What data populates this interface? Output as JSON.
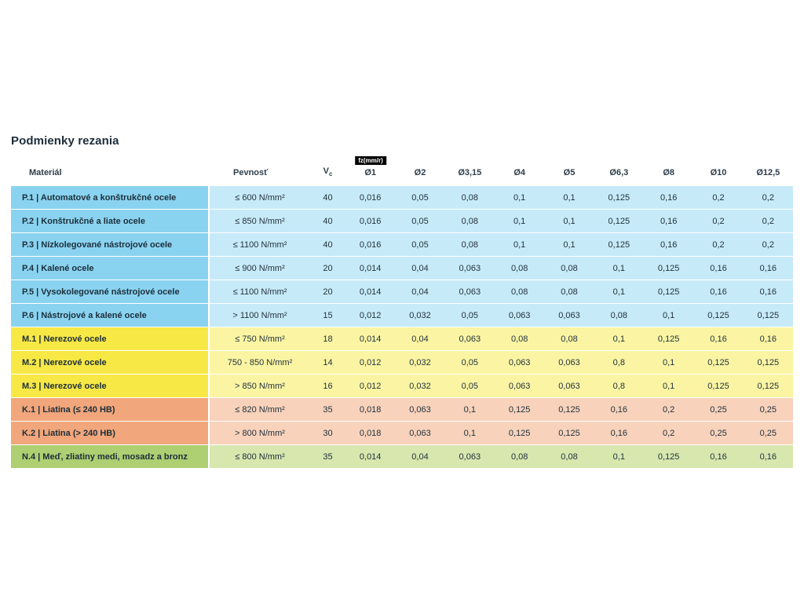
{
  "title": "Podmienky rezania",
  "table": {
    "header": {
      "material": "Materiál",
      "strength": "Pevnosť",
      "vc_main": "V",
      "vc_sub": "c",
      "fz_label": "fz(mm/r)",
      "diameters": [
        "Ø1",
        "Ø2",
        "Ø3,15",
        "Ø4",
        "Ø5",
        "Ø6,3",
        "Ø8",
        "Ø10",
        "Ø12,5"
      ]
    },
    "rows": [
      {
        "group": "P",
        "material": "P.1 | Automatové a konštrukčné ocele",
        "strength": "≤ 600 N/mm²",
        "vc": "40",
        "values": [
          "0,016",
          "0,05",
          "0,08",
          "0,1",
          "0,1",
          "0,125",
          "0,16",
          "0,2",
          "0,2"
        ]
      },
      {
        "group": "P",
        "material": "P.2 | Konštrukčné a liate ocele",
        "strength": "≤ 850 N/mm²",
        "vc": "40",
        "values": [
          "0,016",
          "0,05",
          "0,08",
          "0,1",
          "0,1",
          "0,125",
          "0,16",
          "0,2",
          "0,2"
        ]
      },
      {
        "group": "P",
        "material": "P.3 | Nízkolegované nástrojové ocele",
        "strength": "≤ 1100 N/mm²",
        "vc": "40",
        "values": [
          "0,016",
          "0,05",
          "0,08",
          "0,1",
          "0,1",
          "0,125",
          "0,16",
          "0,2",
          "0,2"
        ]
      },
      {
        "group": "P",
        "material": "P.4 | Kalené ocele",
        "strength": "≤ 900 N/mm²",
        "vc": "20",
        "values": [
          "0,014",
          "0,04",
          "0,063",
          "0,08",
          "0,08",
          "0,1",
          "0,125",
          "0,16",
          "0,16"
        ]
      },
      {
        "group": "P",
        "material": "P.5 | Vysokolegované nástrojové ocele",
        "strength": "≤ 1100 N/mm²",
        "vc": "20",
        "values": [
          "0,014",
          "0,04",
          "0,063",
          "0,08",
          "0,08",
          "0,1",
          "0,125",
          "0,16",
          "0,16"
        ]
      },
      {
        "group": "P",
        "material": "P.6 | Nástrojové a kalené ocele",
        "strength": "> 1100 N/mm²",
        "vc": "15",
        "values": [
          "0,012",
          "0,032",
          "0,05",
          "0,063",
          "0,063",
          "0,08",
          "0,1",
          "0,125",
          "0,125"
        ]
      },
      {
        "group": "M",
        "material": "M.1 | Nerezové ocele",
        "strength": "≤ 750 N/mm²",
        "vc": "18",
        "values": [
          "0,014",
          "0,04",
          "0,063",
          "0,08",
          "0,08",
          "0,1",
          "0,125",
          "0,16",
          "0,16"
        ]
      },
      {
        "group": "M",
        "material": "M.2 | Nerezové ocele",
        "strength": "750 - 850 N/mm²",
        "vc": "14",
        "values": [
          "0,012",
          "0,032",
          "0,05",
          "0,063",
          "0,063",
          "0,8",
          "0,1",
          "0,125",
          "0,125"
        ]
      },
      {
        "group": "M",
        "material": "M.3 | Nerezové ocele",
        "strength": "> 850 N/mm²",
        "vc": "16",
        "values": [
          "0,012",
          "0,032",
          "0,05",
          "0,063",
          "0,063",
          "0,8",
          "0,1",
          "0,125",
          "0,125"
        ]
      },
      {
        "group": "K",
        "material": "K.1 | Liatina (≤ 240 HB)",
        "strength": "≤ 820 N/mm²",
        "vc": "35",
        "values": [
          "0,018",
          "0,063",
          "0,1",
          "0,125",
          "0,125",
          "0,16",
          "0,2",
          "0,25",
          "0,25"
        ]
      },
      {
        "group": "K",
        "material": "K.2 | Liatina (> 240 HB)",
        "strength": "> 800 N/mm²",
        "vc": "30",
        "values": [
          "0,018",
          "0,063",
          "0,1",
          "0,125",
          "0,125",
          "0,16",
          "0,2",
          "0,25",
          "0,25"
        ]
      },
      {
        "group": "N",
        "material": "N.4 | Meď, zliatiny medi, mosadz a bronz",
        "strength": "≤ 800 N/mm²",
        "vc": "35",
        "values": [
          "0,014",
          "0,04",
          "0,063",
          "0,08",
          "0,08",
          "0,1",
          "0,125",
          "0,16",
          "0,16"
        ]
      }
    ]
  },
  "colors": {
    "P": {
      "label": "#8ad3f0",
      "cell": "#c7eaf8"
    },
    "M": {
      "label": "#f7e845",
      "cell": "#fbf5a3"
    },
    "K": {
      "label": "#f1a67b",
      "cell": "#f8d2bb"
    },
    "N": {
      "label": "#aecf72",
      "cell": "#d7e7ae"
    }
  }
}
